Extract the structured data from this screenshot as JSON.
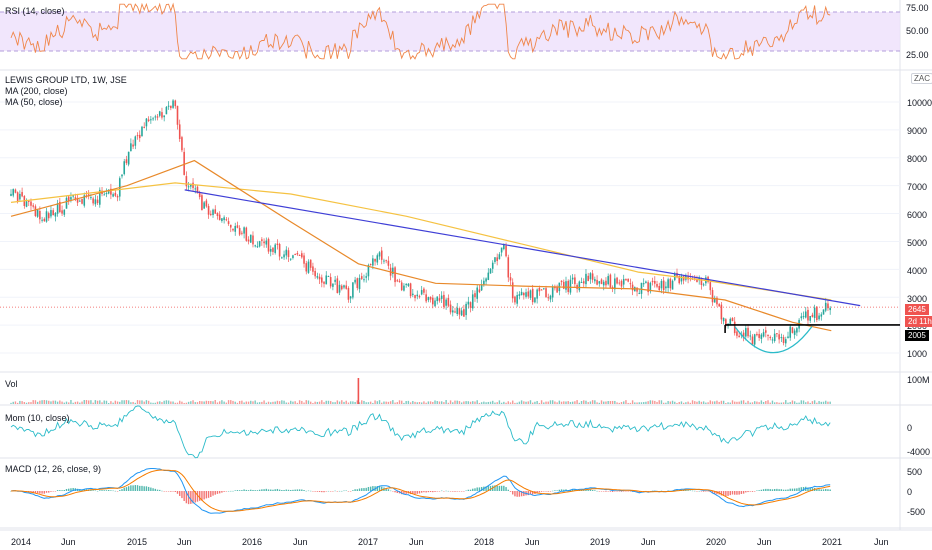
{
  "colors": {
    "up": "#26a69a",
    "down": "#ef5350",
    "ma200": "#f5c242",
    "ma50": "#e8892a",
    "trendline": "#3f3fd6",
    "rsi": "#f0864a",
    "rsi_band": "#ede0fb",
    "momentum": "#2bbbc9",
    "macd": "#2196f3",
    "signal": "#f57c00",
    "support": "#000000",
    "cup": "#2bbbc9"
  },
  "panes": {
    "rsi": {
      "title": "RSI (14, close)",
      "ticks": [
        "75.00",
        "50.00",
        "25.00"
      ]
    },
    "price": {
      "title": "LEWIS GROUP LTD, 1W, JSE",
      "legend": [
        "MA (200, close)",
        "MA (50, close)"
      ],
      "currency": "ZAC",
      "ticks": [
        "10000",
        "9000",
        "8000",
        "7000",
        "6000",
        "5000",
        "4000",
        "3000",
        "2000",
        "1000"
      ],
      "last_price": "2645",
      "countdown": "2d 11h",
      "support_level": "2005"
    },
    "volume": {
      "title": "Vol",
      "ticks": [
        "100M"
      ]
    },
    "momentum": {
      "title": "Mom (10, close)",
      "ticks": [
        "0",
        "-4000"
      ]
    },
    "macd": {
      "title": "MACD (12, 26, close, 9)",
      "ticks": [
        "500",
        "0",
        "-500"
      ]
    }
  },
  "x_axis": [
    "2014",
    "Jun",
    "2015",
    "Jun",
    "2016",
    "Jun",
    "2017",
    "Jun",
    "2018",
    "Jun",
    "2019",
    "Jun",
    "2020",
    "Jun",
    "2021",
    "Jun"
  ],
  "chart_data": {
    "type": "candlestick",
    "title": "LEWIS GROUP LTD, 1W, JSE",
    "interval": "1W",
    "x_range": [
      "2014-01",
      "2021-06"
    ],
    "y_range": [
      1000,
      10000
    ],
    "price_points": [
      {
        "date": "2014-01",
        "price": 6900
      },
      {
        "date": "2014-04",
        "price": 5900
      },
      {
        "date": "2014-08",
        "price": 6500
      },
      {
        "date": "2014-12",
        "price": 6700
      },
      {
        "date": "2015-01",
        "price": 8100
      },
      {
        "date": "2015-03",
        "price": 9300
      },
      {
        "date": "2015-06",
        "price": 9900
      },
      {
        "date": "2015-07",
        "price": 7300
      },
      {
        "date": "2015-09",
        "price": 6200
      },
      {
        "date": "2016-01",
        "price": 5300
      },
      {
        "date": "2016-06",
        "price": 4500
      },
      {
        "date": "2016-12",
        "price": 3100
      },
      {
        "date": "2017-03",
        "price": 4500
      },
      {
        "date": "2017-06",
        "price": 3300
      },
      {
        "date": "2017-12",
        "price": 2500
      },
      {
        "date": "2018-03",
        "price": 4300
      },
      {
        "date": "2018-04",
        "price": 4900
      },
      {
        "date": "2018-05",
        "price": 2900
      },
      {
        "date": "2018-09",
        "price": 3200
      },
      {
        "date": "2019-01",
        "price": 3700
      },
      {
        "date": "2019-06",
        "price": 3300
      },
      {
        "date": "2019-10",
        "price": 3600
      },
      {
        "date": "2020-01",
        "price": 3500
      },
      {
        "date": "2020-03",
        "price": 2100
      },
      {
        "date": "2020-06",
        "price": 1500
      },
      {
        "date": "2020-09",
        "price": 1500
      },
      {
        "date": "2020-11",
        "price": 2200
      },
      {
        "date": "2021-02",
        "price": 2645
      }
    ],
    "ma200": [
      {
        "date": "2014-01",
        "price": 6400
      },
      {
        "date": "2015-06",
        "price": 7100
      },
      {
        "date": "2016-06",
        "price": 6700
      },
      {
        "date": "2017-06",
        "price": 5900
      },
      {
        "date": "2018-06",
        "price": 4900
      },
      {
        "date": "2019-06",
        "price": 3900
      },
      {
        "date": "2020-01",
        "price": 3600
      },
      {
        "date": "2021-02",
        "price": 2900
      }
    ],
    "ma50": [
      {
        "date": "2014-01",
        "price": 5900
      },
      {
        "date": "2015-01",
        "price": 7000
      },
      {
        "date": "2015-08",
        "price": 7900
      },
      {
        "date": "2016-06",
        "price": 5700
      },
      {
        "date": "2017-01",
        "price": 4200
      },
      {
        "date": "2017-09",
        "price": 3500
      },
      {
        "date": "2018-06",
        "price": 3400
      },
      {
        "date": "2019-06",
        "price": 3300
      },
      {
        "date": "2020-03",
        "price": 2900
      },
      {
        "date": "2020-10",
        "price": 2100
      },
      {
        "date": "2021-02",
        "price": 1800
      }
    ],
    "trendline": [
      {
        "date": "2015-07",
        "price": 6850
      },
      {
        "date": "2021-05",
        "price": 2700
      }
    ],
    "support": [
      {
        "date": "2020-03",
        "price": 2005
      },
      {
        "date": "2021-06",
        "price": 2005
      }
    ],
    "volume_spike": {
      "date": "2017-01"
    },
    "rsi_band": [
      30,
      70
    ]
  }
}
